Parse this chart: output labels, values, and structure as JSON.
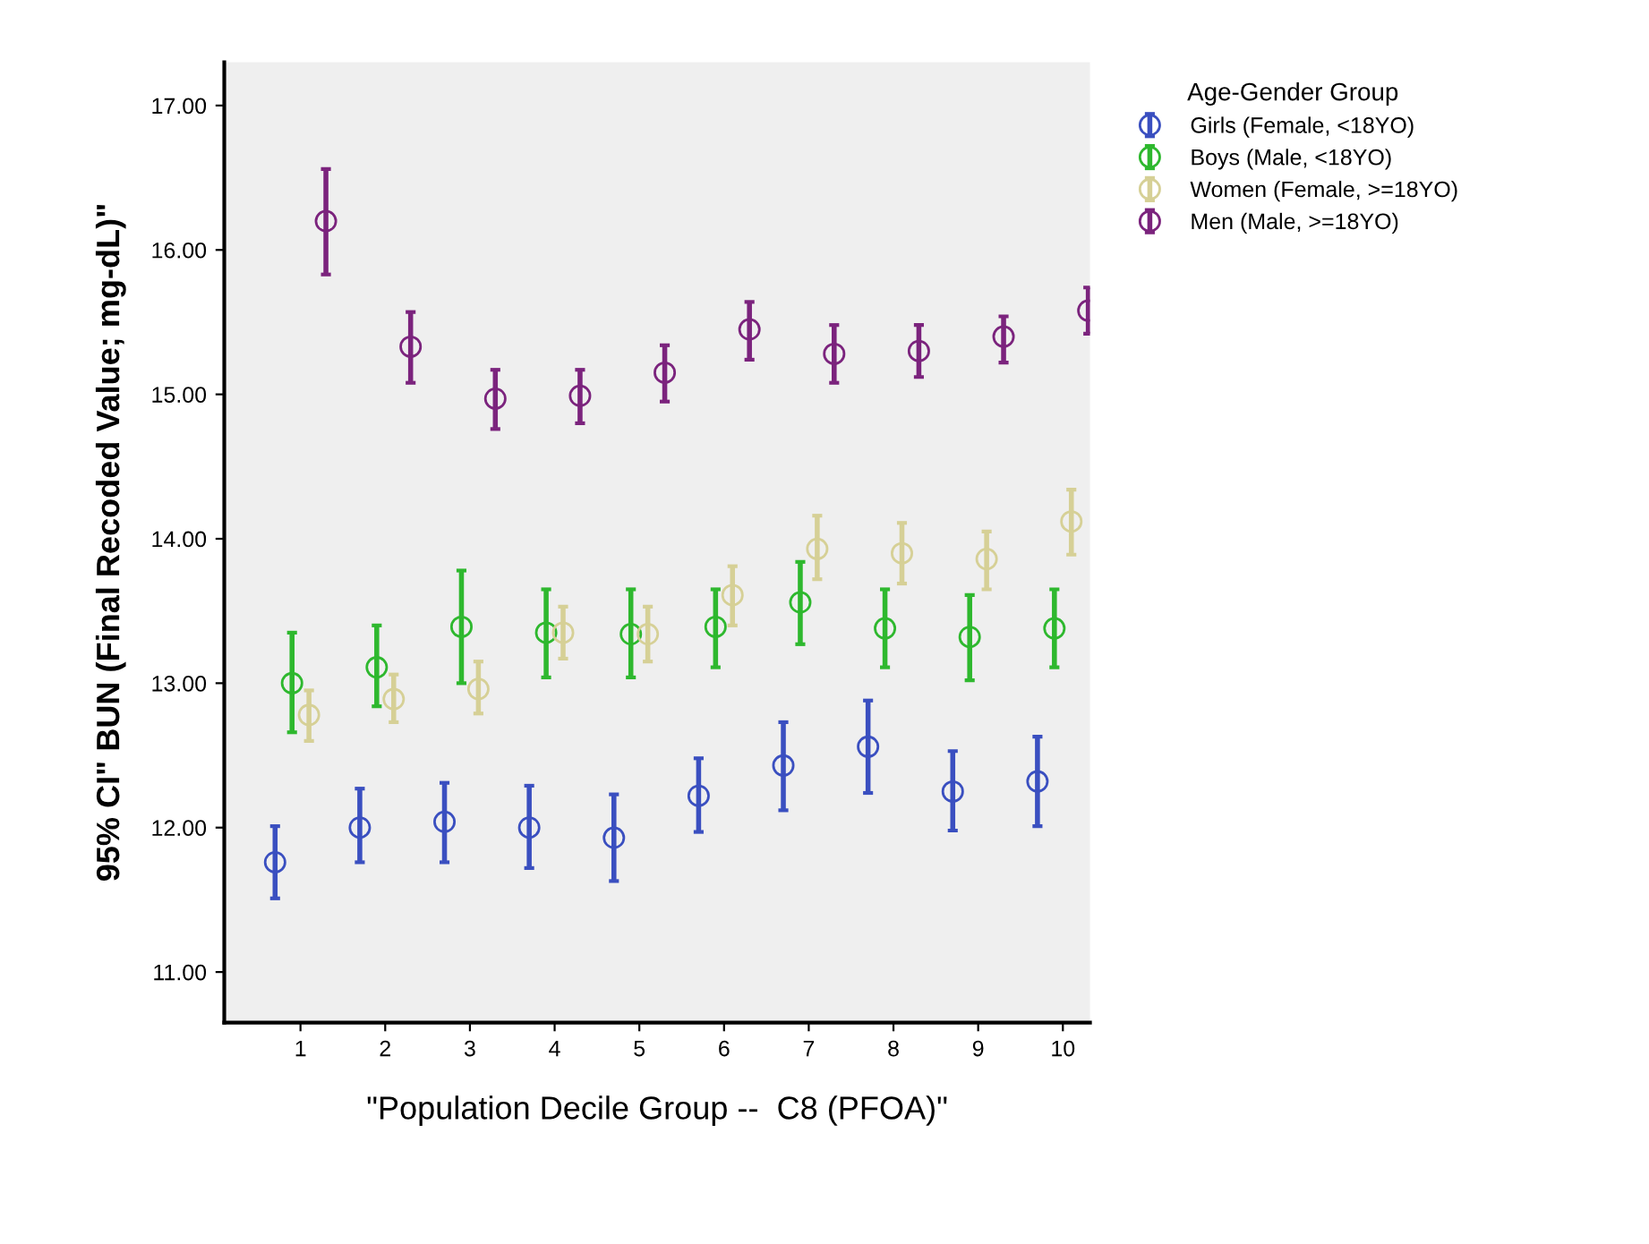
{
  "chart_data": {
    "type": "scatter",
    "xlabel": "\"Population Decile Group --  C8 (PFOA)\"",
    "ylabel": "95% CI\" BUN (Final Recoded Value; mg-dL)\"",
    "legend_title": "Age-Gender Group",
    "legend": "top right",
    "marker": "circle",
    "grid": false,
    "categories": [
      "1",
      "2",
      "3",
      "4",
      "5",
      "6",
      "7",
      "8",
      "9",
      "10"
    ],
    "ylim": [
      10.65,
      17.3
    ],
    "yticks": [
      {
        "value": 11,
        "label": "11.00"
      },
      {
        "value": 12,
        "label": "12.00"
      },
      {
        "value": 13,
        "label": "13.00"
      },
      {
        "value": 14,
        "label": "14.00"
      },
      {
        "value": 15,
        "label": "15.00"
      },
      {
        "value": 16,
        "label": "16.00"
      },
      {
        "value": 17,
        "label": "17.00"
      }
    ],
    "series": [
      {
        "name": "Girls (Female, <18YO)",
        "color": "#3a4fc0",
        "values": [
          11.76,
          12.0,
          12.04,
          12.0,
          11.93,
          12.22,
          12.43,
          12.56,
          12.25,
          12.32
        ],
        "errors": [
          [
            11.51,
            12.01
          ],
          [
            11.76,
            12.27
          ],
          [
            11.76,
            12.31
          ],
          [
            11.72,
            12.29
          ],
          [
            11.63,
            12.23
          ],
          [
            11.97,
            12.48
          ],
          [
            12.12,
            12.73
          ],
          [
            12.24,
            12.88
          ],
          [
            11.98,
            12.53
          ],
          [
            12.01,
            12.63
          ]
        ]
      },
      {
        "name": "Boys (Male, <18YO)",
        "color": "#2eb82e",
        "values": [
          13.0,
          13.11,
          13.39,
          13.35,
          13.34,
          13.39,
          13.56,
          13.38,
          13.32,
          13.38
        ],
        "errors": [
          [
            12.66,
            13.35
          ],
          [
            12.84,
            13.4
          ],
          [
            13.0,
            13.78
          ],
          [
            13.04,
            13.65
          ],
          [
            13.04,
            13.65
          ],
          [
            13.11,
            13.65
          ],
          [
            13.27,
            13.84
          ],
          [
            13.11,
            13.65
          ],
          [
            13.02,
            13.61
          ],
          [
            13.11,
            13.65
          ]
        ]
      },
      {
        "name": "Women (Female, >=18YO)",
        "color": "#d6d096",
        "values": [
          12.78,
          12.89,
          12.96,
          13.35,
          13.34,
          13.61,
          13.93,
          13.9,
          13.86,
          14.12
        ],
        "errors": [
          [
            12.6,
            12.95
          ],
          [
            12.73,
            13.06
          ],
          [
            12.79,
            13.15
          ],
          [
            13.17,
            13.53
          ],
          [
            13.15,
            13.53
          ],
          [
            13.4,
            13.81
          ],
          [
            13.72,
            14.16
          ],
          [
            13.69,
            14.11
          ],
          [
            13.65,
            14.05
          ],
          [
            13.89,
            14.34
          ]
        ]
      },
      {
        "name": "Men (Male, >=18YO)",
        "color": "#7b237d",
        "values": [
          16.2,
          15.33,
          14.97,
          14.99,
          15.15,
          15.45,
          15.28,
          15.3,
          15.4,
          15.58
        ],
        "errors": [
          [
            15.83,
            16.56
          ],
          [
            15.08,
            15.57
          ],
          [
            14.76,
            15.17
          ],
          [
            14.8,
            15.17
          ],
          [
            14.95,
            15.34
          ],
          [
            15.24,
            15.64
          ],
          [
            15.08,
            15.48
          ],
          [
            15.12,
            15.48
          ],
          [
            15.22,
            15.54
          ],
          [
            15.42,
            15.74
          ]
        ]
      }
    ]
  }
}
